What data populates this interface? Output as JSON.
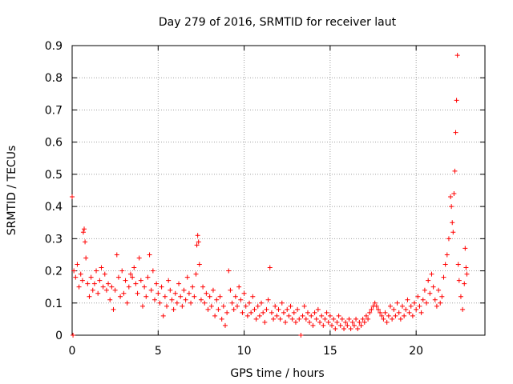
{
  "chart_data": {
    "type": "scatter",
    "title": "Day 279 of 2016, SRMTID for receiver laut",
    "xlabel": "GPS time / hours",
    "ylabel": "SRMTID / TECUs",
    "xlim": [
      0,
      24
    ],
    "ylim": [
      0,
      0.9
    ],
    "xticks": [
      0,
      5,
      10,
      15,
      20
    ],
    "yticks": [
      0,
      0.1,
      0.2,
      0.3,
      0.4,
      0.5,
      0.6,
      0.7,
      0.8,
      0.9
    ],
    "xtick_labels": [
      "0",
      "5",
      "10",
      "15",
      "20"
    ],
    "ytick_labels": [
      "0",
      "0.1",
      "0.2",
      "0.3",
      "0.4",
      "0.5",
      "0.6",
      "0.7",
      "0.8",
      "0.9"
    ],
    "grid": true,
    "marker": "+",
    "color": "#ff0000",
    "series": [
      {
        "name": "SRMTID",
        "points": [
          [
            0.0,
            0.43
          ],
          [
            0.05,
            0.0
          ],
          [
            0.1,
            0.2
          ],
          [
            0.2,
            0.18
          ],
          [
            0.3,
            0.22
          ],
          [
            0.4,
            0.15
          ],
          [
            0.5,
            0.19
          ],
          [
            0.6,
            0.17
          ],
          [
            0.65,
            0.32
          ],
          [
            0.7,
            0.33
          ],
          [
            0.75,
            0.29
          ],
          [
            0.8,
            0.24
          ],
          [
            0.9,
            0.16
          ],
          [
            1.0,
            0.12
          ],
          [
            1.1,
            0.18
          ],
          [
            1.2,
            0.14
          ],
          [
            1.3,
            0.16
          ],
          [
            1.4,
            0.2
          ],
          [
            1.5,
            0.13
          ],
          [
            1.6,
            0.17
          ],
          [
            1.7,
            0.21
          ],
          [
            1.8,
            0.15
          ],
          [
            1.9,
            0.19
          ],
          [
            2.0,
            0.14
          ],
          [
            2.1,
            0.16
          ],
          [
            2.2,
            0.11
          ],
          [
            2.3,
            0.15
          ],
          [
            2.4,
            0.08
          ],
          [
            2.5,
            0.14
          ],
          [
            2.6,
            0.25
          ],
          [
            2.7,
            0.18
          ],
          [
            2.8,
            0.12
          ],
          [
            2.9,
            0.2
          ],
          [
            3.0,
            0.13
          ],
          [
            3.1,
            0.17
          ],
          [
            3.2,
            0.1
          ],
          [
            3.3,
            0.15
          ],
          [
            3.4,
            0.19
          ],
          [
            3.5,
            0.18
          ],
          [
            3.6,
            0.21
          ],
          [
            3.7,
            0.16
          ],
          [
            3.8,
            0.13
          ],
          [
            3.9,
            0.24
          ],
          [
            4.0,
            0.17
          ],
          [
            4.1,
            0.09
          ],
          [
            4.2,
            0.15
          ],
          [
            4.3,
            0.12
          ],
          [
            4.4,
            0.18
          ],
          [
            4.5,
            0.25
          ],
          [
            4.6,
            0.14
          ],
          [
            4.7,
            0.2
          ],
          [
            4.8,
            0.11
          ],
          [
            4.9,
            0.16
          ],
          [
            5.0,
            0.13
          ],
          [
            5.1,
            0.1
          ],
          [
            5.2,
            0.15
          ],
          [
            5.3,
            0.06
          ],
          [
            5.4,
            0.12
          ],
          [
            5.5,
            0.09
          ],
          [
            5.6,
            0.17
          ],
          [
            5.7,
            0.14
          ],
          [
            5.8,
            0.11
          ],
          [
            5.9,
            0.08
          ],
          [
            6.0,
            0.13
          ],
          [
            6.1,
            0.1
          ],
          [
            6.2,
            0.16
          ],
          [
            6.3,
            0.12
          ],
          [
            6.4,
            0.09
          ],
          [
            6.5,
            0.14
          ],
          [
            6.6,
            0.11
          ],
          [
            6.7,
            0.18
          ],
          [
            6.8,
            0.13
          ],
          [
            6.9,
            0.1
          ],
          [
            7.0,
            0.15
          ],
          [
            7.1,
            0.12
          ],
          [
            7.2,
            0.19
          ],
          [
            7.25,
            0.28
          ],
          [
            7.3,
            0.31
          ],
          [
            7.35,
            0.29
          ],
          [
            7.4,
            0.22
          ],
          [
            7.5,
            0.11
          ],
          [
            7.6,
            0.15
          ],
          [
            7.7,
            0.1
          ],
          [
            7.8,
            0.13
          ],
          [
            7.9,
            0.08
          ],
          [
            8.0,
            0.12
          ],
          [
            8.1,
            0.09
          ],
          [
            8.2,
            0.14
          ],
          [
            8.3,
            0.06
          ],
          [
            8.4,
            0.11
          ],
          [
            8.5,
            0.08
          ],
          [
            8.6,
            0.12
          ],
          [
            8.7,
            0.05
          ],
          [
            8.8,
            0.09
          ],
          [
            8.9,
            0.03
          ],
          [
            9.0,
            0.07
          ],
          [
            9.1,
            0.2
          ],
          [
            9.2,
            0.14
          ],
          [
            9.3,
            0.1
          ],
          [
            9.4,
            0.08
          ],
          [
            9.5,
            0.12
          ],
          [
            9.6,
            0.09
          ],
          [
            9.7,
            0.15
          ],
          [
            9.8,
            0.11
          ],
          [
            9.9,
            0.07
          ],
          [
            10.0,
            0.13
          ],
          [
            10.1,
            0.09
          ],
          [
            10.2,
            0.06
          ],
          [
            10.3,
            0.1
          ],
          [
            10.4,
            0.07
          ],
          [
            10.5,
            0.12
          ],
          [
            10.6,
            0.08
          ],
          [
            10.7,
            0.05
          ],
          [
            10.8,
            0.09
          ],
          [
            10.9,
            0.06
          ],
          [
            11.0,
            0.1
          ],
          [
            11.1,
            0.07
          ],
          [
            11.2,
            0.04
          ],
          [
            11.3,
            0.08
          ],
          [
            11.4,
            0.11
          ],
          [
            11.5,
            0.21
          ],
          [
            11.6,
            0.07
          ],
          [
            11.7,
            0.05
          ],
          [
            11.8,
            0.09
          ],
          [
            11.9,
            0.06
          ],
          [
            12.0,
            0.08
          ],
          [
            12.1,
            0.05
          ],
          [
            12.2,
            0.1
          ],
          [
            12.3,
            0.07
          ],
          [
            12.4,
            0.04
          ],
          [
            12.5,
            0.08
          ],
          [
            12.6,
            0.06
          ],
          [
            12.7,
            0.09
          ],
          [
            12.8,
            0.05
          ],
          [
            12.9,
            0.07
          ],
          [
            13.0,
            0.04
          ],
          [
            13.1,
            0.08
          ],
          [
            13.2,
            0.05
          ],
          [
            13.3,
            0.0
          ],
          [
            13.4,
            0.06
          ],
          [
            13.5,
            0.09
          ],
          [
            13.6,
            0.05
          ],
          [
            13.7,
            0.07
          ],
          [
            13.8,
            0.04
          ],
          [
            13.9,
            0.06
          ],
          [
            14.0,
            0.03
          ],
          [
            14.1,
            0.07
          ],
          [
            14.2,
            0.05
          ],
          [
            14.3,
            0.08
          ],
          [
            14.4,
            0.04
          ],
          [
            14.5,
            0.06
          ],
          [
            14.6,
            0.03
          ],
          [
            14.7,
            0.05
          ],
          [
            14.8,
            0.07
          ],
          [
            14.9,
            0.04
          ],
          [
            15.0,
            0.06
          ],
          [
            15.1,
            0.03
          ],
          [
            15.2,
            0.05
          ],
          [
            15.3,
            0.02
          ],
          [
            15.4,
            0.04
          ],
          [
            15.5,
            0.06
          ],
          [
            15.6,
            0.03
          ],
          [
            15.7,
            0.05
          ],
          [
            15.8,
            0.02
          ],
          [
            15.9,
            0.04
          ],
          [
            16.0,
            0.03
          ],
          [
            16.1,
            0.05
          ],
          [
            16.2,
            0.02
          ],
          [
            16.3,
            0.04
          ],
          [
            16.4,
            0.03
          ],
          [
            16.5,
            0.05
          ],
          [
            16.6,
            0.02
          ],
          [
            16.7,
            0.04
          ],
          [
            16.8,
            0.03
          ],
          [
            16.9,
            0.05
          ],
          [
            17.0,
            0.04
          ],
          [
            17.1,
            0.06
          ],
          [
            17.2,
            0.05
          ],
          [
            17.3,
            0.07
          ],
          [
            17.4,
            0.08
          ],
          [
            17.5,
            0.09
          ],
          [
            17.6,
            0.1
          ],
          [
            17.7,
            0.09
          ],
          [
            17.8,
            0.08
          ],
          [
            17.9,
            0.07
          ],
          [
            18.0,
            0.06
          ],
          [
            18.1,
            0.05
          ],
          [
            18.2,
            0.07
          ],
          [
            18.3,
            0.04
          ],
          [
            18.4,
            0.06
          ],
          [
            18.5,
            0.09
          ],
          [
            18.6,
            0.05
          ],
          [
            18.7,
            0.08
          ],
          [
            18.8,
            0.06
          ],
          [
            18.9,
            0.1
          ],
          [
            19.0,
            0.07
          ],
          [
            19.1,
            0.05
          ],
          [
            19.2,
            0.09
          ],
          [
            19.3,
            0.06
          ],
          [
            19.4,
            0.08
          ],
          [
            19.5,
            0.11
          ],
          [
            19.6,
            0.07
          ],
          [
            19.7,
            0.09
          ],
          [
            19.8,
            0.06
          ],
          [
            19.9,
            0.1
          ],
          [
            20.0,
            0.08
          ],
          [
            20.1,
            0.12
          ],
          [
            20.2,
            0.09
          ],
          [
            20.3,
            0.07
          ],
          [
            20.4,
            0.11
          ],
          [
            20.5,
            0.14
          ],
          [
            20.6,
            0.1
          ],
          [
            20.7,
            0.17
          ],
          [
            20.8,
            0.13
          ],
          [
            20.9,
            0.19
          ],
          [
            21.0,
            0.15
          ],
          [
            21.1,
            0.11
          ],
          [
            21.2,
            0.09
          ],
          [
            21.3,
            0.14
          ],
          [
            21.4,
            0.1
          ],
          [
            21.5,
            0.12
          ],
          [
            21.6,
            0.18
          ],
          [
            21.7,
            0.22
          ],
          [
            21.8,
            0.25
          ],
          [
            21.9,
            0.3
          ],
          [
            22.0,
            0.43
          ],
          [
            22.05,
            0.4
          ],
          [
            22.1,
            0.35
          ],
          [
            22.15,
            0.32
          ],
          [
            22.2,
            0.44
          ],
          [
            22.25,
            0.51
          ],
          [
            22.3,
            0.63
          ],
          [
            22.35,
            0.73
          ],
          [
            22.4,
            0.87
          ],
          [
            22.45,
            0.22
          ],
          [
            22.5,
            0.17
          ],
          [
            22.6,
            0.12
          ],
          [
            22.7,
            0.08
          ],
          [
            22.8,
            0.16
          ],
          [
            22.85,
            0.27
          ],
          [
            22.9,
            0.21
          ],
          [
            22.95,
            0.19
          ]
        ]
      }
    ]
  }
}
